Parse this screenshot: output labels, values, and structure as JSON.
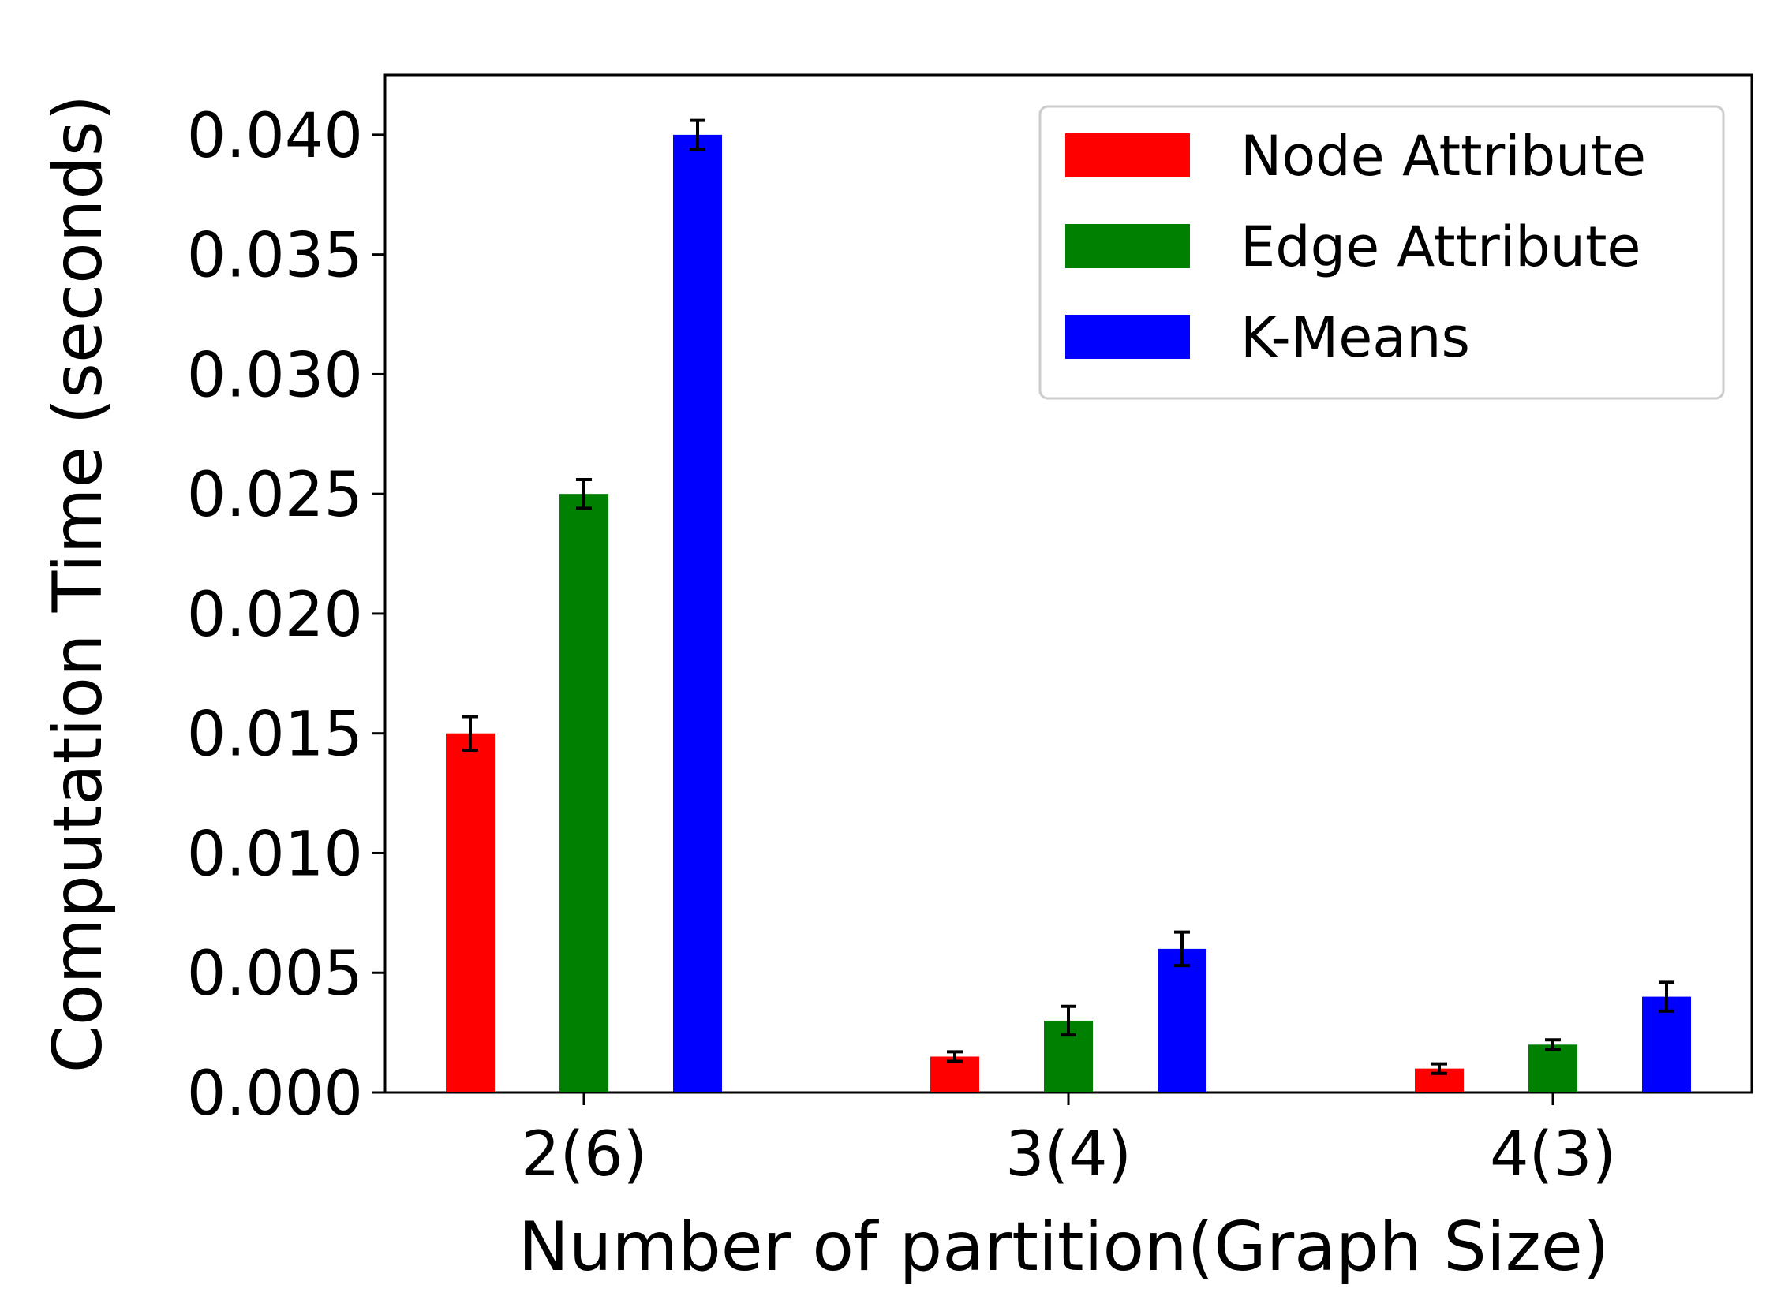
{
  "chart_data": {
    "type": "bar",
    "title": "",
    "xlabel": "Number of partition(Graph Size)",
    "ylabel": "Computation Time (seconds)",
    "categories": [
      "2(6)",
      "3(4)",
      "4(3)"
    ],
    "ylim": [
      0,
      0.0425
    ],
    "yticks": [
      "0.000",
      "0.005",
      "0.010",
      "0.015",
      "0.020",
      "0.025",
      "0.030",
      "0.035",
      "0.040"
    ],
    "ytick_values": [
      0,
      0.005,
      0.01,
      0.015,
      0.02,
      0.025,
      0.03,
      0.035,
      0.04
    ],
    "grid": false,
    "legend_position": "top-right",
    "series": [
      {
        "name": "Node Attribute",
        "color": "#ff0000",
        "values": [
          0.015,
          0.0015,
          0.001
        ],
        "errors": [
          0.0007,
          0.0002,
          0.0002
        ]
      },
      {
        "name": "Edge Attribute",
        "color": "#008000",
        "values": [
          0.025,
          0.003,
          0.002
        ],
        "errors": [
          0.0006,
          0.0006,
          0.0002
        ]
      },
      {
        "name": "K-Means",
        "color": "#0000ff",
        "values": [
          0.04,
          0.006,
          0.004
        ],
        "errors": [
          0.0006,
          0.0007,
          0.0006
        ]
      }
    ]
  }
}
